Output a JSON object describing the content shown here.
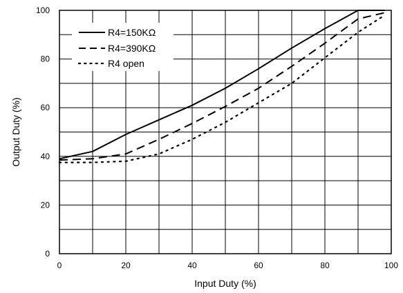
{
  "chart_data": {
    "type": "line",
    "xlabel": "Input Duty (%)",
    "ylabel": "Output Duty (%)",
    "xlim": [
      0,
      100
    ],
    "ylim": [
      0,
      100
    ],
    "x_ticks": [
      "0",
      "20",
      "40",
      "60",
      "80",
      "100"
    ],
    "y_ticks": [
      "0",
      "20",
      "40",
      "60",
      "80",
      "100"
    ],
    "grid": true,
    "legend_position": "top-left",
    "series": [
      {
        "name": "R4=150KΩ",
        "line_style": "solid",
        "x": [
          0,
          10,
          20,
          30,
          40,
          50,
          60,
          70,
          80,
          90,
          98
        ],
        "y": [
          39,
          42,
          49,
          55,
          61,
          68,
          76,
          84.5,
          92.5,
          100,
          100
        ]
      },
      {
        "name": "R4=390KΩ",
        "line_style": "dashed",
        "x": [
          0,
          10,
          20,
          30,
          40,
          50,
          60,
          70,
          80,
          90,
          98
        ],
        "y": [
          38.5,
          39,
          41,
          47,
          53.5,
          60.5,
          68,
          77,
          86.5,
          96.5,
          99
        ]
      },
      {
        "name": "R4 open",
        "line_style": "dotted",
        "x": [
          0,
          10,
          20,
          30,
          40,
          50,
          60,
          70,
          80,
          90,
          98
        ],
        "y": [
          37.5,
          37.5,
          38,
          41,
          47,
          54,
          62,
          70,
          80.5,
          91,
          98
        ]
      }
    ],
    "color": "#000000"
  }
}
